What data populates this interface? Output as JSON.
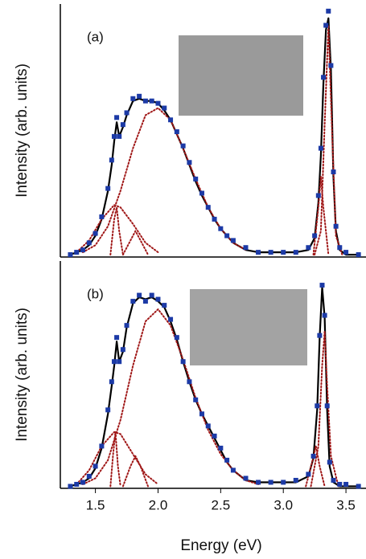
{
  "chart_data": [
    {
      "type": "line",
      "panel_label": "(a)",
      "ylabel": "Intensity (arb. units)",
      "xlim": [
        1.22,
        3.66
      ],
      "ylim": [
        -0.01,
        1.06
      ],
      "series": [
        {
          "style": "markers",
          "color": "#1c3aa6",
          "x": [
            1.3,
            1.35,
            1.4,
            1.45,
            1.5,
            1.55,
            1.6,
            1.63,
            1.65,
            1.67,
            1.69,
            1.72,
            1.75,
            1.8,
            1.85,
            1.9,
            1.95,
            2.0,
            2.05,
            2.1,
            2.15,
            2.2,
            2.25,
            2.3,
            2.35,
            2.4,
            2.45,
            2.5,
            2.55,
            2.6,
            2.7,
            2.8,
            2.9,
            3.0,
            3.1,
            3.2,
            3.25,
            3.28,
            3.3,
            3.32,
            3.34,
            3.36,
            3.38,
            3.4,
            3.42,
            3.45,
            3.5,
            3.6
          ],
          "values": [
            0.0,
            0.01,
            0.02,
            0.05,
            0.09,
            0.16,
            0.28,
            0.4,
            0.5,
            0.58,
            0.5,
            0.55,
            0.6,
            0.66,
            0.67,
            0.65,
            0.65,
            0.64,
            0.62,
            0.57,
            0.52,
            0.46,
            0.39,
            0.32,
            0.26,
            0.2,
            0.15,
            0.11,
            0.08,
            0.06,
            0.03,
            0.01,
            0.01,
            0.01,
            0.01,
            0.03,
            0.08,
            0.25,
            0.45,
            0.75,
            0.97,
            1.03,
            0.8,
            0.35,
            0.12,
            0.03,
            0.01,
            0.0
          ]
        },
        {
          "style": "line",
          "color": "#000000",
          "x": [
            1.3,
            1.35,
            1.4,
            1.45,
            1.5,
            1.55,
            1.6,
            1.63,
            1.65,
            1.67,
            1.69,
            1.72,
            1.75,
            1.8,
            1.85,
            1.9,
            1.95,
            2.0,
            2.05,
            2.1,
            2.15,
            2.2,
            2.25,
            2.3,
            2.35,
            2.4,
            2.45,
            2.5,
            2.55,
            2.6,
            2.7,
            2.8,
            2.9,
            3.0,
            3.1,
            3.2,
            3.25,
            3.28,
            3.3,
            3.32,
            3.34,
            3.36,
            3.38,
            3.4,
            3.42,
            3.45,
            3.5,
            3.6
          ],
          "values": [
            0.0,
            0.01,
            0.02,
            0.04,
            0.08,
            0.15,
            0.27,
            0.38,
            0.48,
            0.56,
            0.5,
            0.54,
            0.59,
            0.65,
            0.66,
            0.65,
            0.65,
            0.64,
            0.61,
            0.57,
            0.51,
            0.45,
            0.38,
            0.31,
            0.25,
            0.2,
            0.15,
            0.11,
            0.08,
            0.05,
            0.02,
            0.01,
            0.01,
            0.01,
            0.01,
            0.02,
            0.07,
            0.22,
            0.42,
            0.72,
            0.95,
            1.0,
            0.78,
            0.33,
            0.1,
            0.02,
            0.0,
            0.0
          ]
        },
        {
          "style": "dotted",
          "color": "#a01818",
          "x": [
            1.4,
            1.5,
            1.6,
            1.7,
            1.8,
            1.9,
            2.0,
            2.1,
            2.2,
            2.3,
            2.4,
            2.5,
            2.6,
            2.7
          ],
          "values": [
            0.01,
            0.04,
            0.12,
            0.27,
            0.45,
            0.59,
            0.62,
            0.57,
            0.45,
            0.32,
            0.2,
            0.11,
            0.05,
            0.02
          ]
        },
        {
          "style": "dotted",
          "color": "#a01818",
          "x": [
            1.35,
            1.45,
            1.55,
            1.65,
            1.7,
            1.8,
            1.9,
            2.0
          ],
          "values": [
            0.01,
            0.06,
            0.15,
            0.21,
            0.2,
            0.13,
            0.05,
            0.01
          ]
        },
        {
          "style": "dotted",
          "color": "#a01818",
          "x": [
            1.62,
            1.65,
            1.67,
            1.69,
            1.72
          ],
          "values": [
            0.0,
            0.15,
            0.2,
            0.1,
            0.0
          ]
        },
        {
          "style": "dotted",
          "color": "#a01818",
          "x": [
            1.72,
            1.78,
            1.82,
            1.86,
            1.92
          ],
          "values": [
            0.0,
            0.06,
            0.1,
            0.06,
            0.0
          ]
        },
        {
          "style": "dotted",
          "color": "#a01818",
          "x": [
            3.25,
            3.3,
            3.33,
            3.36,
            3.39,
            3.42,
            3.47
          ],
          "values": [
            0.0,
            0.1,
            0.55,
            0.97,
            0.5,
            0.08,
            0.0
          ]
        },
        {
          "style": "dotted",
          "color": "#a01818",
          "x": [
            3.24,
            3.28,
            3.3,
            3.32,
            3.36
          ],
          "values": [
            0.0,
            0.2,
            0.33,
            0.2,
            0.0
          ]
        }
      ]
    },
    {
      "type": "line",
      "panel_label": "(b)",
      "ylabel": "Intensity (arb. units)",
      "xlabel": "Energy (eV)",
      "xlim": [
        1.22,
        3.66
      ],
      "ylim": [
        -0.01,
        1.12
      ],
      "xticks": [
        {
          "value": 1.5,
          "label": "1.5"
        },
        {
          "value": 2,
          "label": "2.0"
        },
        {
          "value": 2.5,
          "label": "2.5"
        },
        {
          "value": 3,
          "label": "3.0"
        },
        {
          "value": 3.5,
          "label": "3.5"
        }
      ],
      "series": [
        {
          "style": "markers",
          "color": "#1c3aa6",
          "x": [
            1.3,
            1.35,
            1.4,
            1.45,
            1.5,
            1.55,
            1.6,
            1.63,
            1.65,
            1.67,
            1.69,
            1.72,
            1.75,
            1.8,
            1.85,
            1.9,
            1.95,
            2.0,
            2.05,
            2.1,
            2.15,
            2.2,
            2.25,
            2.3,
            2.35,
            2.4,
            2.45,
            2.5,
            2.55,
            2.6,
            2.7,
            2.8,
            2.9,
            3.0,
            3.1,
            3.2,
            3.24,
            3.27,
            3.29,
            3.31,
            3.33,
            3.35,
            3.37,
            3.4,
            3.45,
            3.5,
            3.6
          ],
          "values": [
            0.0,
            0.01,
            0.02,
            0.05,
            0.1,
            0.2,
            0.38,
            0.52,
            0.62,
            0.74,
            0.62,
            0.68,
            0.8,
            0.92,
            0.95,
            0.92,
            0.95,
            0.93,
            0.9,
            0.83,
            0.74,
            0.62,
            0.52,
            0.43,
            0.36,
            0.3,
            0.25,
            0.19,
            0.13,
            0.08,
            0.04,
            0.02,
            0.02,
            0.02,
            0.03,
            0.06,
            0.15,
            0.4,
            0.75,
            1.0,
            0.85,
            0.4,
            0.12,
            0.03,
            0.01,
            0.01,
            0.0
          ]
        },
        {
          "style": "line",
          "color": "#000000",
          "x": [
            1.3,
            1.35,
            1.4,
            1.45,
            1.5,
            1.55,
            1.6,
            1.63,
            1.65,
            1.67,
            1.69,
            1.72,
            1.75,
            1.8,
            1.85,
            1.9,
            1.95,
            2.0,
            2.05,
            2.1,
            2.15,
            2.2,
            2.25,
            2.3,
            2.35,
            2.4,
            2.45,
            2.5,
            2.55,
            2.6,
            2.7,
            2.8,
            2.9,
            3.0,
            3.1,
            3.2,
            3.24,
            3.27,
            3.29,
            3.31,
            3.33,
            3.35,
            3.37,
            3.4,
            3.45,
            3.5,
            3.6
          ],
          "values": [
            0.0,
            0.01,
            0.02,
            0.04,
            0.09,
            0.19,
            0.36,
            0.5,
            0.6,
            0.72,
            0.62,
            0.67,
            0.79,
            0.91,
            0.94,
            0.93,
            0.94,
            0.92,
            0.89,
            0.82,
            0.73,
            0.62,
            0.52,
            0.43,
            0.36,
            0.3,
            0.24,
            0.18,
            0.12,
            0.08,
            0.03,
            0.02,
            0.02,
            0.02,
            0.02,
            0.05,
            0.14,
            0.38,
            0.74,
            0.99,
            0.84,
            0.38,
            0.1,
            0.02,
            0.0,
            0.0,
            0.0
          ]
        },
        {
          "style": "dotted",
          "color": "#a01818",
          "x": [
            1.4,
            1.5,
            1.6,
            1.7,
            1.8,
            1.9,
            2.0,
            2.1,
            2.2,
            2.3,
            2.4,
            2.5,
            2.6,
            2.7,
            2.8
          ],
          "values": [
            0.01,
            0.04,
            0.13,
            0.33,
            0.6,
            0.82,
            0.88,
            0.8,
            0.63,
            0.44,
            0.28,
            0.16,
            0.08,
            0.03,
            0.01
          ]
        },
        {
          "style": "dotted",
          "color": "#a01818",
          "x": [
            1.35,
            1.45,
            1.55,
            1.65,
            1.7,
            1.8,
            1.9,
            2.0
          ],
          "values": [
            0.01,
            0.08,
            0.2,
            0.27,
            0.26,
            0.16,
            0.06,
            0.01
          ]
        },
        {
          "style": "dotted",
          "color": "#a01818",
          "x": [
            1.62,
            1.64,
            1.66,
            1.68,
            1.7
          ],
          "values": [
            0.0,
            0.15,
            0.27,
            0.1,
            0.0
          ]
        },
        {
          "style": "dotted",
          "color": "#a01818",
          "x": [
            1.72,
            1.78,
            1.82,
            1.86,
            1.92
          ],
          "values": [
            0.0,
            0.1,
            0.15,
            0.1,
            0.0
          ]
        },
        {
          "style": "dotted",
          "color": "#a01818",
          "x": [
            3.22,
            3.28,
            3.31,
            3.33,
            3.35,
            3.38,
            3.44
          ],
          "values": [
            0.0,
            0.2,
            0.6,
            0.77,
            0.5,
            0.15,
            0.0
          ]
        },
        {
          "style": "dotted",
          "color": "#a01818",
          "x": [
            3.18,
            3.23,
            3.26,
            3.29,
            3.33
          ],
          "values": [
            0.0,
            0.12,
            0.2,
            0.1,
            0.0
          ]
        }
      ]
    }
  ]
}
